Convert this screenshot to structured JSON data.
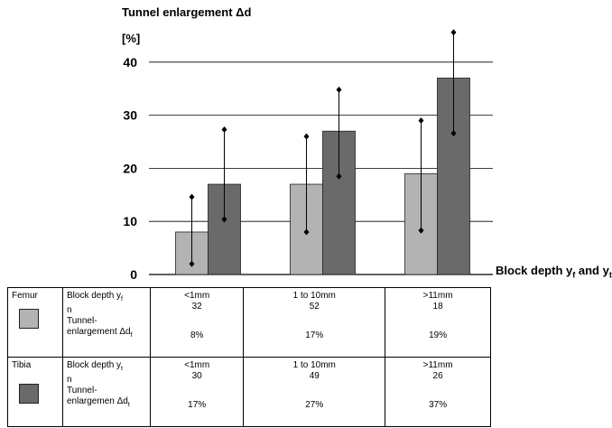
{
  "chart_data": {
    "type": "bar",
    "title": "Tunnel enlargement Δd",
    "y_unit": "[%]",
    "xlabel": "Block depth y",
    "xlabel_sub1": "f",
    "xlabel_mid": " and y",
    "xlabel_sub2": "t",
    "ylim": [
      0,
      45
    ],
    "yticks": [
      "0",
      "10",
      "20",
      "30",
      "40"
    ],
    "yticks_values": [
      0,
      10,
      20,
      30,
      40
    ],
    "categories": [
      "<1mm",
      "1 to 10mm",
      ">11mm"
    ],
    "series": [
      {
        "name": "Femur",
        "color": "#b3b3b3",
        "values": [
          8,
          17,
          19
        ],
        "err_low": [
          2,
          8,
          8.3
        ],
        "err_high": [
          14.6,
          26,
          29
        ]
      },
      {
        "name": "Tibia",
        "color": "#6a6a6a",
        "values": [
          17,
          27,
          37
        ],
        "err_low": [
          10.4,
          18.5,
          26.6
        ],
        "err_high": [
          27.3,
          34.8,
          45.6
        ]
      }
    ],
    "grid": true
  },
  "table": {
    "rows": [
      {
        "group": "Femur",
        "labels": [
          "Block depth y",
          "n",
          "Tunnel-",
          "enlargement Δd"
        ],
        "subs": [
          "f",
          "f"
        ],
        "cols": [
          {
            "depth": "<1mm",
            "n": "32",
            "pct": "8%"
          },
          {
            "depth": "1 to 10mm",
            "n": "52",
            "pct": "17%"
          },
          {
            "depth": ">11mm",
            "n": "18",
            "pct": "19%"
          }
        ]
      },
      {
        "group": "Tibia",
        "labels": [
          "Block depth y",
          "n",
          "Tunnel-",
          "enlargemen Δd"
        ],
        "subs": [
          "t",
          "t"
        ],
        "cols": [
          {
            "depth": "<1mm",
            "n": "30",
            "pct": "17%"
          },
          {
            "depth": "1 to 10mm",
            "n": "49",
            "pct": "27%"
          },
          {
            "depth": ">11mm",
            "n": "26",
            "pct": "37%"
          }
        ]
      }
    ]
  }
}
